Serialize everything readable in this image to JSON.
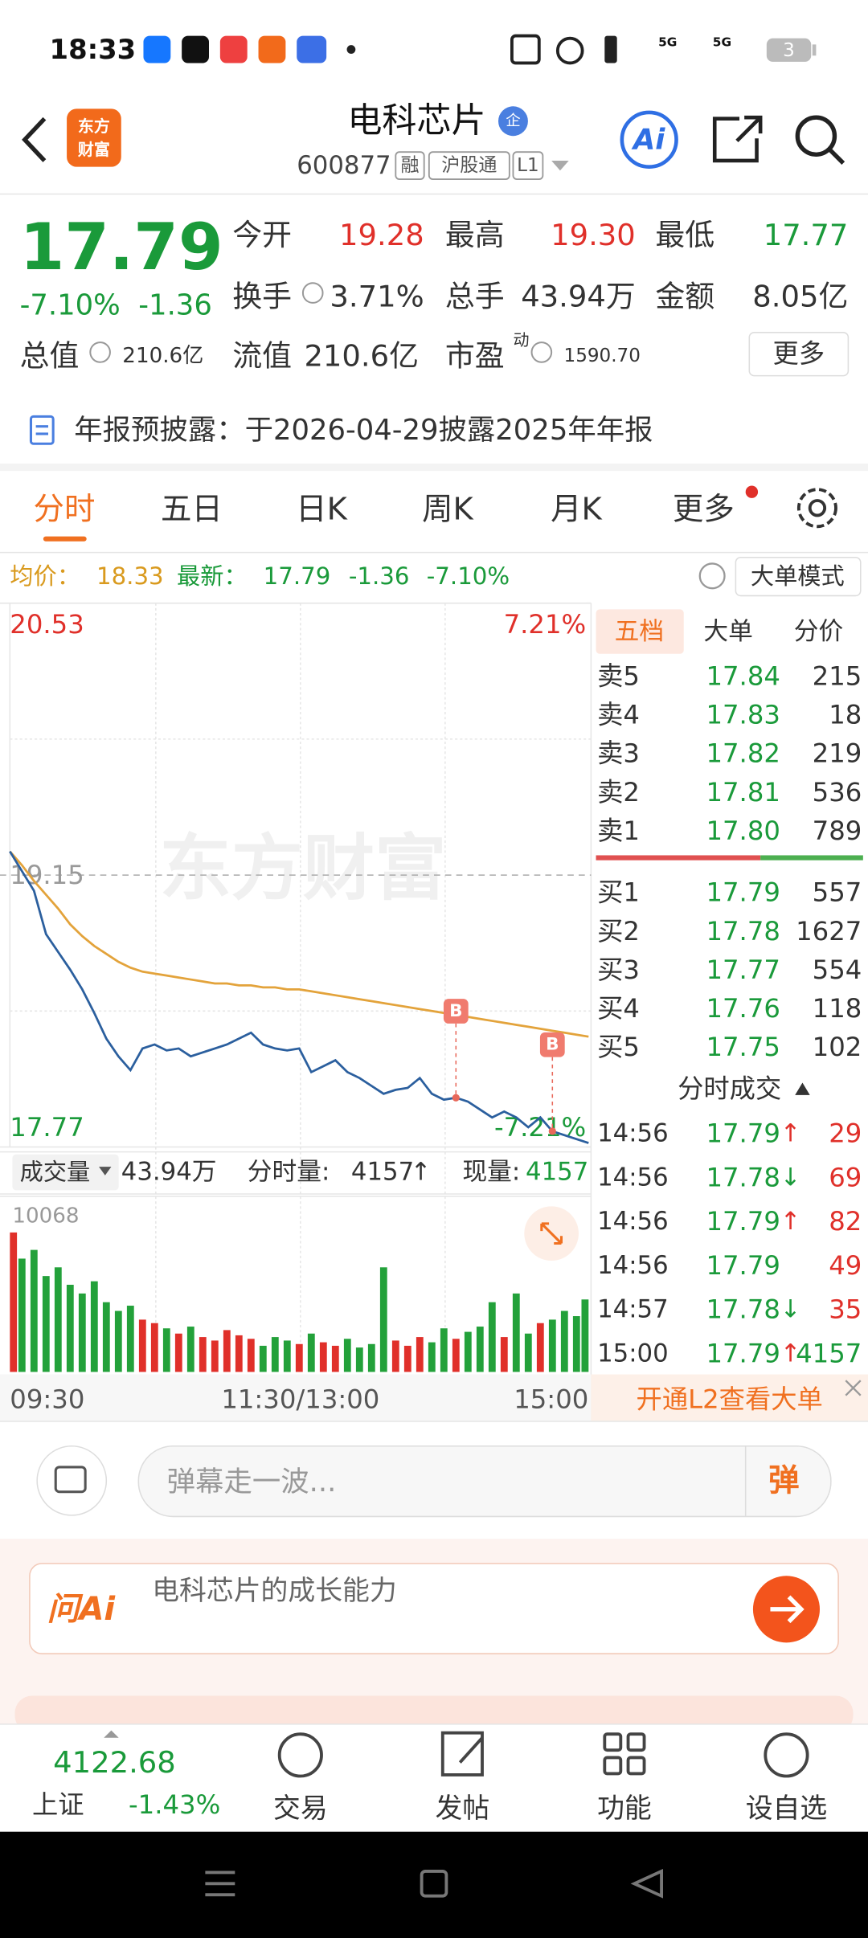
{
  "status_bar": {
    "time": "18:33",
    "battery": "3",
    "network": [
      "5G",
      "5G"
    ]
  },
  "header": {
    "logo": [
      "东方",
      "财富"
    ],
    "title": "电科芯片",
    "badge": "企",
    "code": "600877",
    "tags": [
      "融",
      "沪股通",
      "L1"
    ],
    "ai": "Ai"
  },
  "quote": {
    "price": "17.79",
    "change_pct": "-7.10%",
    "change": "-1.36",
    "fields": [
      {
        "label": "今开",
        "value": "19.28",
        "color": "#e0302a"
      },
      {
        "label": "最高",
        "value": "19.30",
        "color": "#e0302a"
      },
      {
        "label": "最低",
        "value": "17.77",
        "color": "#1a9a3a"
      },
      {
        "label": "换手",
        "value": "3.71%"
      },
      {
        "label": "总手",
        "value": "43.94万"
      },
      {
        "label": "金额",
        "value": "8.05亿"
      },
      {
        "label": "总值",
        "value": "210.6亿"
      },
      {
        "label": "流值",
        "value": "210.6亿"
      },
      {
        "label": "市盈",
        "superscript": "动",
        "value": "1590.70"
      }
    ],
    "more": "更多"
  },
  "notice": "年报预披露：于2026-04-29披露2025年年报",
  "tabs": [
    "分时",
    "五日",
    "日K",
    "周K",
    "月K",
    "更多"
  ],
  "info": {
    "avg_label": "均价：",
    "avg": "18.33",
    "last_label": "最新：",
    "last": "17.79",
    "change": "-1.36",
    "change_pct": "-7.10%",
    "mode": "大单模式"
  },
  "chart_data": [
    {
      "type": "line",
      "x": [
        "09:30",
        "09:35",
        "09:40",
        "09:45",
        "09:50",
        "09:55",
        "10:00",
        "10:05",
        "10:10",
        "10:15",
        "10:20",
        "10:25",
        "10:30",
        "10:35",
        "10:40",
        "10:45",
        "10:50",
        "10:55",
        "11:00",
        "11:05",
        "11:10",
        "11:15",
        "11:20",
        "11:25",
        "11:30",
        "13:05",
        "13:10",
        "13:15",
        "13:20",
        "13:25",
        "13:30",
        "13:35",
        "13:40",
        "13:45",
        "13:50",
        "13:55",
        "14:00",
        "14:05",
        "14:10",
        "14:15",
        "14:20",
        "14:25",
        "14:30",
        "14:35",
        "14:40",
        "14:45",
        "14:50",
        "14:55",
        "15:00"
      ],
      "series": [
        {
          "color": "#2b5f9e",
          "values": [
            19.27,
            19.17,
            19.07,
            18.85,
            18.76,
            18.67,
            18.57,
            18.45,
            18.32,
            18.23,
            18.16,
            18.27,
            18.29,
            18.26,
            18.27,
            18.23,
            18.25,
            18.27,
            18.29,
            18.32,
            18.35,
            18.29,
            18.27,
            18.26,
            18.27,
            18.15,
            18.18,
            18.21,
            18.15,
            18.12,
            18.08,
            18.04,
            18.06,
            18.07,
            18.12,
            18.04,
            18.01,
            18.02,
            18.0,
            17.96,
            17.92,
            17.95,
            17.92,
            17.87,
            17.92,
            17.85,
            17.83,
            17.81,
            17.79
          ]
        },
        {
          "color": "#e3a33b",
          "values": [
            19.27,
            19.2,
            19.12,
            19.05,
            18.98,
            18.9,
            18.84,
            18.79,
            18.75,
            18.71,
            18.68,
            18.66,
            18.65,
            18.64,
            18.63,
            18.62,
            18.61,
            18.6,
            18.6,
            18.59,
            18.59,
            18.58,
            18.58,
            18.57,
            18.57,
            18.56,
            18.55,
            18.54,
            18.53,
            18.52,
            18.51,
            18.5,
            18.49,
            18.48,
            18.47,
            18.46,
            18.45,
            18.44,
            18.43,
            18.42,
            18.41,
            18.4,
            18.39,
            18.38,
            18.37,
            18.36,
            18.35,
            18.34,
            18.33
          ]
        }
      ],
      "ylim": [
        17.77,
        20.53
      ],
      "yticks": [
        17.77,
        19.15,
        20.53
      ],
      "y2lim": [
        -7.21,
        7.21
      ],
      "y2ticks": [
        {
          "value": -7.21,
          "label": "-7.21%"
        },
        {
          "value": 7.21,
          "label": "7.21%"
        }
      ],
      "xtick_labels": [
        "09:30",
        "11:30/13:00",
        "15:00"
      ],
      "watermark": "东方财富",
      "annotations": [
        {
          "text": "B",
          "x": "14:05"
        },
        {
          "text": "B",
          "x": "14:45"
        }
      ],
      "grid": true
    },
    {
      "type": "bar",
      "values": [
        8000,
        6500,
        7000,
        5500,
        6000,
        5000,
        4500,
        5200,
        4000,
        3500,
        3800,
        3000,
        2800,
        2500,
        2200,
        2600,
        2000,
        1800,
        2400,
        2100,
        1900,
        1500,
        2000,
        1800,
        1600,
        2200,
        1700,
        1500,
        1900,
        1400,
        1600,
        6000,
        1800,
        1500,
        2000,
        1700,
        2500,
        1900,
        2300,
        2600,
        4000,
        2000,
        4500,
        2200,
        2800,
        3000,
        3500,
        3200,
        4157
      ],
      "ylim": [
        0,
        10068
      ],
      "yticks": [
        10068
      ],
      "up_color": "#e0302a",
      "down_color": "#23a13a"
    }
  ],
  "volume_header": {
    "selector": "成交量",
    "total": "43.94万",
    "minute_label": "分时量:",
    "minute": "4157",
    "minute_dir": "↑",
    "current_label": "现量:",
    "current": "4157"
  },
  "order_book": {
    "tabs": [
      "五档",
      "大单",
      "分价"
    ],
    "asks": [
      {
        "label": "卖5",
        "price": "17.84",
        "volume": "215"
      },
      {
        "label": "卖4",
        "price": "17.83",
        "volume": "18"
      },
      {
        "label": "卖3",
        "price": "17.82",
        "volume": "219"
      },
      {
        "label": "卖2",
        "price": "17.81",
        "volume": "536"
      },
      {
        "label": "卖1",
        "price": "17.80",
        "volume": "789"
      }
    ],
    "bids": [
      {
        "label": "买1",
        "price": "17.79",
        "volume": "557"
      },
      {
        "label": "买2",
        "price": "17.78",
        "volume": "1627"
      },
      {
        "label": "买3",
        "price": "17.77",
        "volume": "554"
      },
      {
        "label": "买4",
        "price": "17.76",
        "volume": "118"
      },
      {
        "label": "买5",
        "price": "17.75",
        "volume": "102"
      }
    ]
  },
  "trades": {
    "title": "分时成交",
    "rows": [
      {
        "time": "14:56",
        "price": "17.79",
        "dir": "↑",
        "volume": "29",
        "color": "#e0302a"
      },
      {
        "time": "14:56",
        "price": "17.78",
        "dir": "↓",
        "volume": "69",
        "color": "#e0302a"
      },
      {
        "time": "14:56",
        "price": "17.79",
        "dir": "↑",
        "volume": "82",
        "color": "#e0302a"
      },
      {
        "time": "14:56",
        "price": "17.79",
        "volume": "49",
        "color": "#e0302a"
      },
      {
        "time": "14:57",
        "price": "17.78",
        "dir": "↓",
        "volume": "35",
        "color": "#e0302a"
      },
      {
        "time": "15:00",
        "price": "17.79",
        "dir": "↑",
        "volume": "4157",
        "color": "#1a9a3a"
      }
    ]
  },
  "l2_banner": "开通L2查看大单",
  "comment": {
    "placeholder": "弹幕走一波...",
    "button": "弹"
  },
  "ask_ai": {
    "logo": "问Ai",
    "prompt": "电科芯片的成长能力"
  },
  "bottom_nav": {
    "index_value": "4122.68",
    "index_name": "上证",
    "index_change": "-1.43%",
    "items": [
      "交易",
      "发帖",
      "功能",
      "设自选"
    ]
  }
}
